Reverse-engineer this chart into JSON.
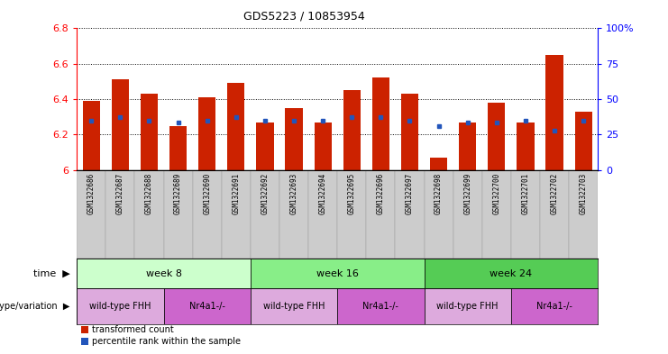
{
  "title": "GDS5223 / 10853954",
  "samples": [
    "GSM1322686",
    "GSM1322687",
    "GSM1322688",
    "GSM1322689",
    "GSM1322690",
    "GSM1322691",
    "GSM1322692",
    "GSM1322693",
    "GSM1322694",
    "GSM1322695",
    "GSM1322696",
    "GSM1322697",
    "GSM1322698",
    "GSM1322699",
    "GSM1322700",
    "GSM1322701",
    "GSM1322702",
    "GSM1322703"
  ],
  "red_values": [
    6.39,
    6.51,
    6.43,
    6.25,
    6.41,
    6.49,
    6.27,
    6.35,
    6.27,
    6.45,
    6.52,
    6.43,
    6.07,
    6.27,
    6.38,
    6.27,
    6.65,
    6.33
  ],
  "blue_values": [
    6.28,
    6.3,
    6.28,
    6.27,
    6.28,
    6.3,
    6.28,
    6.28,
    6.28,
    6.3,
    6.3,
    6.28,
    6.25,
    6.27,
    6.27,
    6.28,
    6.22,
    6.28
  ],
  "ymin": 6.0,
  "ymax": 6.8,
  "yticks_left": [
    6.0,
    6.2,
    6.4,
    6.6,
    6.8
  ],
  "yticks_right": [
    0,
    25,
    50,
    75,
    100
  ],
  "bar_color": "#cc2200",
  "blue_color": "#2255bb",
  "bg_color": "#ffffff",
  "label_bg_color": "#cccccc",
  "week_colors": [
    "#ccffcc",
    "#88ee88",
    "#55cc55"
  ],
  "genotype_colors_alt": [
    "#ddaadd",
    "#cc66cc"
  ],
  "weeks": [
    {
      "label": "week 8",
      "start": 0,
      "end": 6
    },
    {
      "label": "week 16",
      "start": 6,
      "end": 12
    },
    {
      "label": "week 24",
      "start": 12,
      "end": 18
    }
  ],
  "genotypes": [
    {
      "label": "wild-type FHH",
      "start": 0,
      "end": 3,
      "color_idx": 0
    },
    {
      "label": "Nr4a1-/-",
      "start": 3,
      "end": 6,
      "color_idx": 1
    },
    {
      "label": "wild-type FHH",
      "start": 6,
      "end": 9,
      "color_idx": 0
    },
    {
      "label": "Nr4a1-/-",
      "start": 9,
      "end": 12,
      "color_idx": 1
    },
    {
      "label": "wild-type FHH",
      "start": 12,
      "end": 15,
      "color_idx": 0
    },
    {
      "label": "Nr4a1-/-",
      "start": 15,
      "end": 18,
      "color_idx": 1
    }
  ],
  "legend_red": "transformed count",
  "legend_blue": "percentile rank within the sample",
  "time_label": "time",
  "geno_label": "genotype/variation"
}
